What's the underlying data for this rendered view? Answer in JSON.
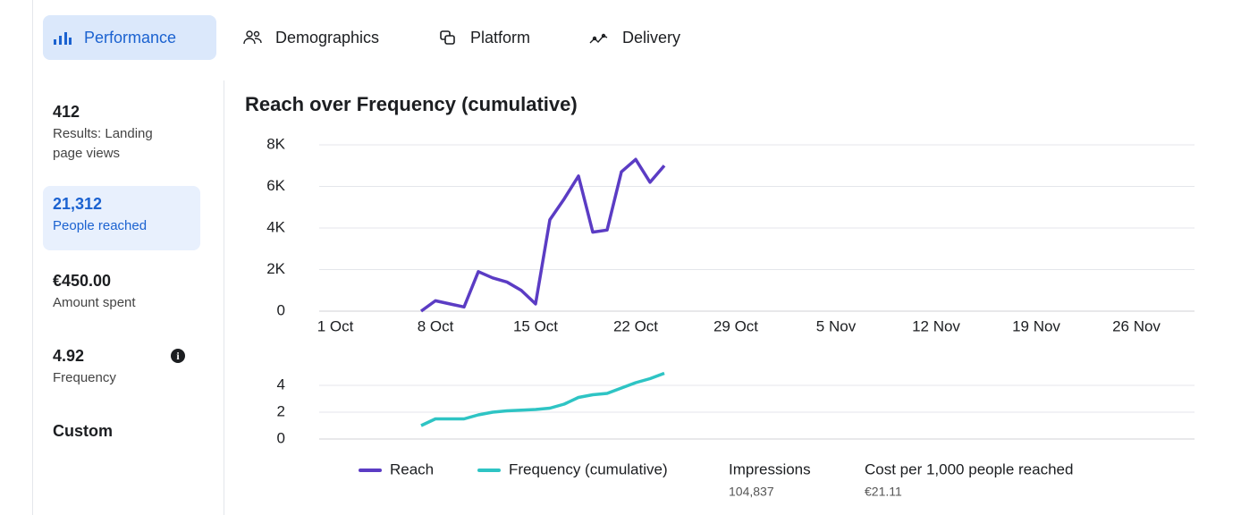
{
  "tabs": [
    {
      "label": "Performance",
      "active": true
    },
    {
      "label": "Demographics",
      "active": false
    },
    {
      "label": "Platform",
      "active": false
    },
    {
      "label": "Delivery",
      "active": false
    }
  ],
  "metrics": [
    {
      "value": "412",
      "label": "Results: Landing page views"
    },
    {
      "value": "21,312",
      "label": "People reached",
      "selected": true
    },
    {
      "value": "€450.00",
      "label": "Amount spent"
    },
    {
      "value": "4.92",
      "label": "Frequency",
      "info": true
    },
    {
      "value": "Custom"
    }
  ],
  "chart_data": [
    {
      "type": "line",
      "title": "Reach over Frequency (cumulative)",
      "categories": [
        "1 Oct",
        null,
        null,
        null,
        null,
        null,
        null,
        "8 Oct",
        null,
        null,
        null,
        null,
        null,
        null,
        "15 Oct",
        null,
        null,
        null,
        null,
        null,
        null,
        "22 Oct",
        null,
        null,
        null,
        null,
        null,
        null,
        "29 Oct",
        null,
        null,
        null,
        null,
        null,
        null,
        "5 Nov",
        null,
        null,
        null,
        null,
        null,
        null,
        "12 Nov",
        null,
        null,
        null,
        null,
        null,
        null,
        "19 Nov",
        null,
        null,
        null,
        null,
        null,
        null,
        "26 Nov"
      ],
      "series": [
        {
          "name": "Reach",
          "color": "#5b3cc4",
          "values": [
            null,
            null,
            null,
            null,
            null,
            null,
            0,
            500,
            350,
            200,
            1900,
            1600,
            1400,
            1000,
            350,
            4400,
            5400,
            6500,
            3800,
            3900,
            6700,
            7300,
            6200,
            7000,
            null,
            null,
            null,
            null,
            null,
            null,
            null,
            null,
            null,
            null,
            null,
            null,
            null,
            null,
            null,
            null,
            null,
            null,
            null,
            null,
            null,
            null,
            null,
            null,
            null,
            null,
            null,
            null,
            null,
            null,
            null,
            null,
            null
          ]
        }
      ],
      "ylim": [
        0,
        8000
      ],
      "yticks": [
        0,
        {
          "value": 2000,
          "label": "2K"
        },
        {
          "value": 4000,
          "label": "4K"
        },
        {
          "value": 6000,
          "label": "6K"
        },
        {
          "value": 8000,
          "label": "8K"
        }
      ],
      "grid": true
    },
    {
      "type": "line",
      "series": [
        {
          "name": "Frequency (cumulative)",
          "color": "#2ec4c4",
          "values": [
            null,
            null,
            null,
            null,
            null,
            null,
            1.0,
            1.5,
            1.5,
            1.5,
            1.8,
            2.0,
            2.1,
            2.15,
            2.2,
            2.3,
            2.6,
            3.1,
            3.3,
            3.4,
            3.8,
            4.2,
            4.5,
            4.9,
            null,
            null,
            null,
            null,
            null,
            null,
            null,
            null,
            null,
            null,
            null,
            null,
            null,
            null,
            null,
            null,
            null,
            null,
            null,
            null,
            null,
            null,
            null,
            null,
            null,
            null,
            null,
            null,
            null,
            null,
            null,
            null,
            null
          ]
        }
      ],
      "ylim": [
        0,
        5
      ],
      "yticks": [
        0,
        2,
        4
      ],
      "grid": true
    }
  ],
  "summary": [
    {
      "label": "Impressions",
      "value": "104,837"
    },
    {
      "label": "Cost per 1,000 people reached",
      "value": "€21.11"
    }
  ]
}
